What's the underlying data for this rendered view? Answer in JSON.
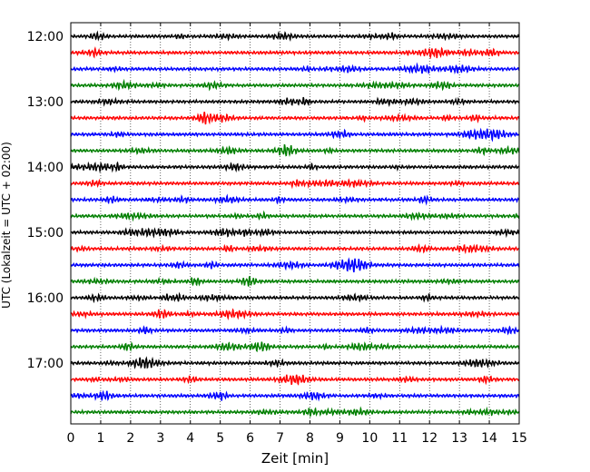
{
  "chart_data": {
    "type": "line",
    "xlabel": "Zeit  [min]",
    "ylabel": "UTC (Lokalzeit = UTC + 02:00)",
    "xlim": [
      0,
      15
    ],
    "x_ticks": [
      "0",
      "1",
      "2",
      "3",
      "4",
      "5",
      "6",
      "7",
      "8",
      "9",
      "10",
      "11",
      "12",
      "13",
      "14",
      "15"
    ],
    "y_ticks": [
      "12:00",
      "13:00",
      "14:00",
      "15:00",
      "16:00",
      "17:00"
    ],
    "grid": "vertical dotted lines at each minute",
    "trace_interval_minutes": 15,
    "trace_color_cycle": [
      "#000000",
      "#ff0000",
      "#0000ff",
      "#007f00"
    ],
    "traces": [
      {
        "start": "12:00",
        "color": "#000000"
      },
      {
        "start": "12:15",
        "color": "#ff0000"
      },
      {
        "start": "12:30",
        "color": "#0000ff"
      },
      {
        "start": "12:45",
        "color": "#007f00"
      },
      {
        "start": "13:00",
        "color": "#000000"
      },
      {
        "start": "13:15",
        "color": "#ff0000"
      },
      {
        "start": "13:30",
        "color": "#0000ff"
      },
      {
        "start": "13:45",
        "color": "#007f00"
      },
      {
        "start": "14:00",
        "color": "#000000"
      },
      {
        "start": "14:15",
        "color": "#ff0000"
      },
      {
        "start": "14:30",
        "color": "#0000ff"
      },
      {
        "start": "14:45",
        "color": "#007f00"
      },
      {
        "start": "15:00",
        "color": "#000000"
      },
      {
        "start": "15:15",
        "color": "#ff0000"
      },
      {
        "start": "15:30",
        "color": "#0000ff"
      },
      {
        "start": "15:45",
        "color": "#007f00"
      },
      {
        "start": "16:00",
        "color": "#000000"
      },
      {
        "start": "16:15",
        "color": "#ff0000"
      },
      {
        "start": "16:30",
        "color": "#0000ff"
      },
      {
        "start": "16:45",
        "color": "#007f00"
      },
      {
        "start": "17:00",
        "color": "#000000"
      },
      {
        "start": "17:15",
        "color": "#ff0000"
      },
      {
        "start": "17:30",
        "color": "#0000ff"
      },
      {
        "start": "17:45",
        "color": "#007f00"
      }
    ]
  }
}
